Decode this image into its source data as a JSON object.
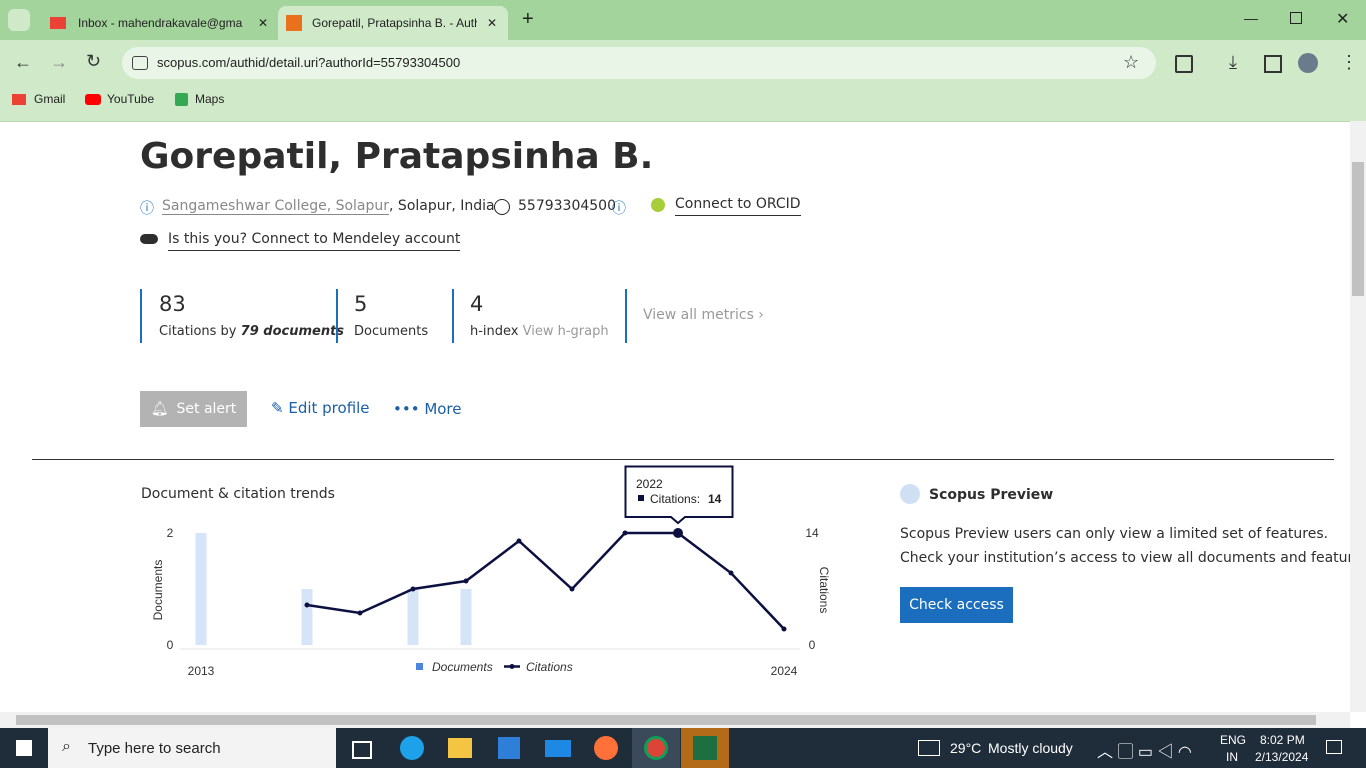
{
  "browser": {
    "tabs": [
      "Inbox - mahendrakavale@gma",
      "Gorepatil, Pratapsinha B. - Auth"
    ],
    "url": "scopus.com/authid/detail.uri?authorId=55793304500",
    "bookmarks": [
      "Gmail",
      "YouTube",
      "Maps"
    ]
  },
  "profile": {
    "name": "Gorepatil, Pratapsinha B.",
    "affiliation": "Sangameshwar College, Solapur",
    "location": ", Solapur, India",
    "author_id": "55793304500",
    "orcid": "Connect to ORCID",
    "mendeley": "Is this you? Connect to Mendeley account"
  },
  "metrics": [
    {
      "value": "83",
      "label": "Citations by",
      "emphasis": "79 documents"
    },
    {
      "value": "5",
      "label": "Documents"
    },
    {
      "value": "4",
      "label": "h-index",
      "link": "View h-graph"
    }
  ],
  "view_all": "View all metrics",
  "actions": [
    "Set alert",
    "Edit profile",
    "More"
  ],
  "chart_data": {
    "type": "combo",
    "title": "Document & citation trends",
    "ylabel": "Documents",
    "y2label": "Citations",
    "categories": [
      "2013",
      null,
      null,
      null,
      null,
      null,
      null,
      null,
      null,
      null,
      null,
      "2024"
    ],
    "series": [
      {
        "name": "Documents",
        "type": "bar",
        "color": "#d6e4f8",
        "values": [
          2,
          0,
          1,
          0,
          1,
          1,
          0,
          0,
          0,
          0,
          0,
          0
        ]
      },
      {
        "name": "Citations",
        "type": "line",
        "axis": "y2",
        "color": "#0c1040",
        "values": [
          null,
          null,
          5,
          4,
          7,
          8,
          13,
          7,
          14,
          14,
          9,
          2
        ]
      }
    ],
    "ylim": [
      0,
      2
    ],
    "yticks": [
      0,
      2
    ],
    "y2lim": [
      0,
      14
    ],
    "y2ticks": [
      0,
      14
    ],
    "tooltip": {
      "title": "2022",
      "label": "Citations:"
    }
  },
  "preview": {
    "title": "Scopus Preview",
    "lines": [
      "Scopus Preview users can only view a limited set of features.",
      "Check your institution’s access to view all documents and features."
    ],
    "button": "Check access"
  },
  "taskbar": {
    "search": "Type here to search",
    "temperature": "29°C",
    "condition": "Mostly cloudy",
    "language": "ENG",
    "region": "IN",
    "time": "8:02 PM",
    "date": "2/13/2024"
  }
}
